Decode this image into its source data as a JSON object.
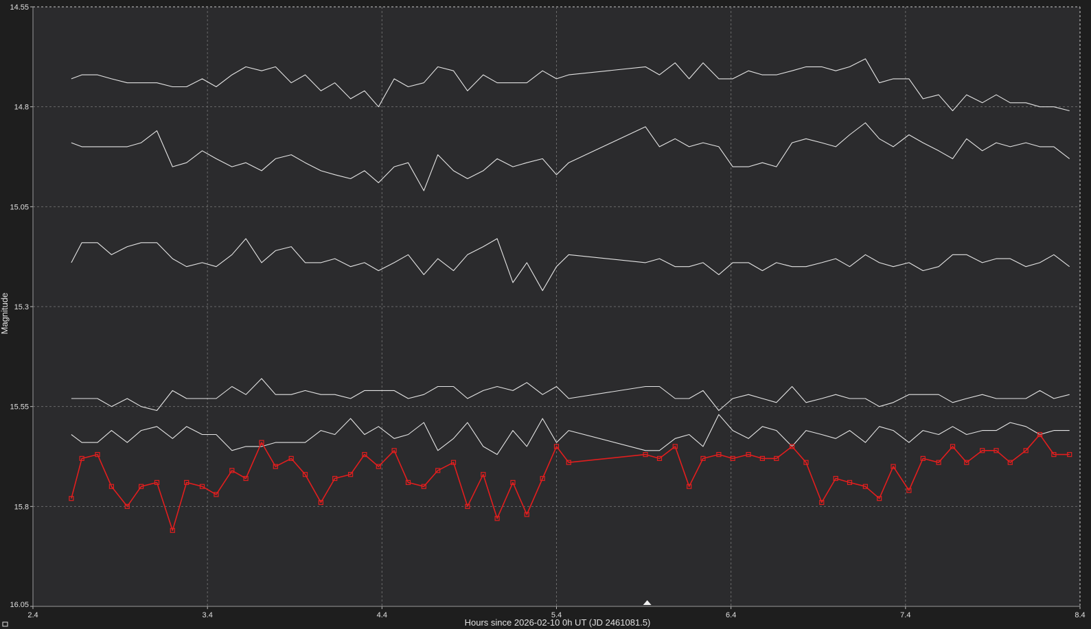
{
  "chart_data": {
    "type": "line",
    "title": "",
    "xlabel": "Hours since 2026-02-10 0h UT (JD 2461081.5)",
    "ylabel": "Magnitude",
    "xlim": [
      2.4,
      8.4
    ],
    "ylim": [
      14.55,
      16.05
    ],
    "y_inverted": true,
    "x_ticks": [
      "2.4",
      "3.4",
      "4.4",
      "5.4",
      "6.4",
      "7.4",
      "8.4"
    ],
    "y_ticks": [
      "14.55",
      "14.8",
      "15.05",
      "15.3",
      "15.55",
      "15.8",
      "16.05"
    ],
    "grid": true,
    "x_marker_value": 5.92,
    "colors": {
      "background": "#2b2b2d",
      "frame": "#1e1e1e",
      "grid": "#6a6a6a",
      "comparison": "#e6e6e6",
      "target": "#e31e1e",
      "text": "#e0e0e0"
    },
    "series": [
      {
        "color": "#e6e6e6",
        "marker": "none",
        "x": [
          2.62,
          2.68,
          2.77,
          2.85,
          2.94,
          3.02,
          3.11,
          3.2,
          3.28,
          3.37,
          3.45,
          3.54,
          3.62,
          3.71,
          3.79,
          3.88,
          3.96,
          4.05,
          4.13,
          4.22,
          4.3,
          4.38,
          4.47,
          4.55,
          4.64,
          4.72,
          4.81,
          4.89,
          4.98,
          5.06,
          5.15,
          5.23,
          5.32,
          5.4,
          5.47,
          5.91,
          5.99,
          6.08,
          6.16,
          6.24,
          6.33,
          6.41,
          6.5,
          6.58,
          6.66,
          6.75,
          6.83,
          6.92,
          7.0,
          7.08,
          7.17,
          7.25,
          7.33,
          7.42,
          7.5,
          7.59,
          7.67,
          7.75,
          7.84,
          7.92,
          8.0,
          8.09,
          8.17,
          8.25,
          8.34
        ],
        "y": [
          14.73,
          14.72,
          14.72,
          14.73,
          14.74,
          14.74,
          14.74,
          14.75,
          14.75,
          14.73,
          14.75,
          14.72,
          14.7,
          14.71,
          14.7,
          14.74,
          14.72,
          14.76,
          14.74,
          14.78,
          14.76,
          14.8,
          14.73,
          14.75,
          14.74,
          14.7,
          14.71,
          14.76,
          14.72,
          14.74,
          14.74,
          14.74,
          14.71,
          14.73,
          14.72,
          14.7,
          14.72,
          14.69,
          14.73,
          14.69,
          14.73,
          14.73,
          14.71,
          14.72,
          14.72,
          14.71,
          14.7,
          14.7,
          14.71,
          14.7,
          14.68,
          14.74,
          14.73,
          14.73,
          14.78,
          14.77,
          14.81,
          14.77,
          14.79,
          14.77,
          14.79,
          14.79,
          14.8,
          14.8,
          14.81
        ]
      },
      {
        "color": "#e6e6e6",
        "marker": "none",
        "x": [
          2.62,
          2.68,
          2.77,
          2.85,
          2.94,
          3.02,
          3.11,
          3.2,
          3.28,
          3.37,
          3.45,
          3.54,
          3.62,
          3.71,
          3.79,
          3.88,
          3.96,
          4.05,
          4.13,
          4.22,
          4.3,
          4.38,
          4.47,
          4.55,
          4.64,
          4.72,
          4.81,
          4.89,
          4.98,
          5.06,
          5.15,
          5.23,
          5.32,
          5.4,
          5.47,
          5.91,
          5.99,
          6.08,
          6.16,
          6.24,
          6.33,
          6.41,
          6.5,
          6.58,
          6.66,
          6.75,
          6.83,
          6.92,
          7.0,
          7.08,
          7.17,
          7.25,
          7.33,
          7.42,
          7.5,
          7.59,
          7.67,
          7.75,
          7.84,
          7.92,
          8.0,
          8.09,
          8.17,
          8.25,
          8.34
        ],
        "y": [
          14.89,
          14.9,
          14.9,
          14.9,
          14.9,
          14.89,
          14.86,
          14.95,
          14.94,
          14.91,
          14.93,
          14.95,
          14.94,
          14.96,
          14.93,
          14.92,
          14.94,
          14.96,
          14.97,
          14.98,
          14.96,
          14.99,
          14.95,
          14.94,
          15.01,
          14.92,
          14.96,
          14.98,
          14.96,
          14.93,
          14.95,
          14.94,
          14.93,
          14.97,
          14.94,
          14.85,
          14.9,
          14.88,
          14.9,
          14.89,
          14.9,
          14.95,
          14.95,
          14.94,
          14.95,
          14.89,
          14.88,
          14.89,
          14.9,
          14.87,
          14.84,
          14.88,
          14.9,
          14.87,
          14.89,
          14.91,
          14.93,
          14.88,
          14.91,
          14.89,
          14.9,
          14.89,
          14.9,
          14.9,
          14.93
        ]
      },
      {
        "color": "#e6e6e6",
        "marker": "none",
        "x": [
          2.62,
          2.68,
          2.77,
          2.85,
          2.94,
          3.02,
          3.11,
          3.2,
          3.28,
          3.37,
          3.45,
          3.54,
          3.62,
          3.71,
          3.79,
          3.88,
          3.96,
          4.05,
          4.13,
          4.22,
          4.3,
          4.38,
          4.47,
          4.55,
          4.64,
          4.72,
          4.81,
          4.89,
          4.98,
          5.06,
          5.15,
          5.23,
          5.32,
          5.4,
          5.47,
          5.91,
          5.99,
          6.08,
          6.16,
          6.24,
          6.33,
          6.41,
          6.5,
          6.58,
          6.66,
          6.75,
          6.83,
          6.92,
          7.0,
          7.08,
          7.17,
          7.25,
          7.33,
          7.42,
          7.5,
          7.59,
          7.67,
          7.75,
          7.84,
          7.92,
          8.0,
          8.09,
          8.17,
          8.25,
          8.34
        ],
        "y": [
          15.19,
          15.14,
          15.14,
          15.17,
          15.15,
          15.14,
          15.14,
          15.18,
          15.2,
          15.19,
          15.2,
          15.17,
          15.13,
          15.19,
          15.16,
          15.15,
          15.19,
          15.19,
          15.18,
          15.2,
          15.19,
          15.21,
          15.19,
          15.17,
          15.22,
          15.18,
          15.21,
          15.17,
          15.15,
          15.13,
          15.24,
          15.19,
          15.26,
          15.2,
          15.17,
          15.19,
          15.18,
          15.2,
          15.2,
          15.19,
          15.22,
          15.19,
          15.19,
          15.21,
          15.19,
          15.2,
          15.2,
          15.19,
          15.18,
          15.2,
          15.17,
          15.19,
          15.2,
          15.19,
          15.21,
          15.2,
          15.17,
          15.17,
          15.19,
          15.18,
          15.18,
          15.2,
          15.19,
          15.17,
          15.2
        ]
      },
      {
        "color": "#e6e6e6",
        "marker": "none",
        "x": [
          2.62,
          2.68,
          2.77,
          2.85,
          2.94,
          3.02,
          3.11,
          3.2,
          3.28,
          3.37,
          3.45,
          3.54,
          3.62,
          3.71,
          3.79,
          3.88,
          3.96,
          4.05,
          4.13,
          4.22,
          4.3,
          4.38,
          4.47,
          4.55,
          4.64,
          4.72,
          4.81,
          4.89,
          4.98,
          5.06,
          5.15,
          5.23,
          5.32,
          5.4,
          5.47,
          5.91,
          5.99,
          6.08,
          6.16,
          6.24,
          6.33,
          6.41,
          6.5,
          6.58,
          6.66,
          6.75,
          6.83,
          6.92,
          7.0,
          7.08,
          7.17,
          7.25,
          7.33,
          7.42,
          7.5,
          7.59,
          7.67,
          7.75,
          7.84,
          7.92,
          8.0,
          8.09,
          8.17,
          8.25,
          8.34
        ],
        "y": [
          15.53,
          15.53,
          15.53,
          15.55,
          15.53,
          15.55,
          15.56,
          15.51,
          15.53,
          15.53,
          15.53,
          15.5,
          15.52,
          15.48,
          15.52,
          15.52,
          15.51,
          15.52,
          15.52,
          15.53,
          15.51,
          15.51,
          15.51,
          15.53,
          15.52,
          15.5,
          15.5,
          15.53,
          15.51,
          15.5,
          15.51,
          15.49,
          15.52,
          15.5,
          15.53,
          15.5,
          15.5,
          15.53,
          15.53,
          15.51,
          15.56,
          15.53,
          15.52,
          15.53,
          15.54,
          15.5,
          15.54,
          15.53,
          15.52,
          15.53,
          15.53,
          15.55,
          15.54,
          15.52,
          15.52,
          15.52,
          15.54,
          15.53,
          15.52,
          15.53,
          15.53,
          15.53,
          15.51,
          15.53,
          15.52
        ]
      },
      {
        "color": "#e6e6e6",
        "marker": "none",
        "x": [
          2.62,
          2.68,
          2.77,
          2.85,
          2.94,
          3.02,
          3.11,
          3.2,
          3.28,
          3.37,
          3.45,
          3.54,
          3.62,
          3.71,
          3.79,
          3.88,
          3.96,
          4.05,
          4.13,
          4.22,
          4.3,
          4.38,
          4.47,
          4.55,
          4.64,
          4.72,
          4.81,
          4.89,
          4.98,
          5.06,
          5.15,
          5.23,
          5.32,
          5.4,
          5.47,
          5.91,
          5.99,
          6.08,
          6.16,
          6.24,
          6.33,
          6.41,
          6.5,
          6.58,
          6.66,
          6.75,
          6.83,
          6.92,
          7.0,
          7.08,
          7.17,
          7.25,
          7.33,
          7.42,
          7.5,
          7.59,
          7.67,
          7.75,
          7.84,
          7.92,
          8.0,
          8.09,
          8.17,
          8.25,
          8.34
        ],
        "y": [
          15.62,
          15.64,
          15.64,
          15.61,
          15.64,
          15.61,
          15.6,
          15.63,
          15.6,
          15.62,
          15.62,
          15.66,
          15.65,
          15.65,
          15.64,
          15.64,
          15.64,
          15.61,
          15.62,
          15.58,
          15.62,
          15.6,
          15.63,
          15.62,
          15.59,
          15.66,
          15.63,
          15.59,
          15.65,
          15.67,
          15.61,
          15.65,
          15.58,
          15.64,
          15.61,
          15.66,
          15.66,
          15.63,
          15.62,
          15.65,
          15.57,
          15.61,
          15.63,
          15.6,
          15.61,
          15.65,
          15.61,
          15.62,
          15.63,
          15.61,
          15.64,
          15.6,
          15.61,
          15.64,
          15.61,
          15.62,
          15.6,
          15.62,
          15.61,
          15.61,
          15.59,
          15.6,
          15.62,
          15.61,
          15.61
        ]
      },
      {
        "color": "#e31e1e",
        "marker": "square",
        "x": [
          2.62,
          2.68,
          2.77,
          2.85,
          2.94,
          3.02,
          3.11,
          3.2,
          3.28,
          3.37,
          3.45,
          3.54,
          3.62,
          3.71,
          3.79,
          3.88,
          3.96,
          4.05,
          4.13,
          4.22,
          4.3,
          4.38,
          4.47,
          4.55,
          4.64,
          4.72,
          4.81,
          4.89,
          4.98,
          5.06,
          5.15,
          5.23,
          5.32,
          5.4,
          5.47,
          5.91,
          5.99,
          6.08,
          6.16,
          6.24,
          6.33,
          6.41,
          6.5,
          6.58,
          6.66,
          6.75,
          6.83,
          6.92,
          7.0,
          7.08,
          7.17,
          7.25,
          7.33,
          7.42,
          7.5,
          7.59,
          7.67,
          7.75,
          7.84,
          7.92,
          8.0,
          8.09,
          8.17,
          8.25,
          8.34
        ],
        "y": [
          15.78,
          15.68,
          15.67,
          15.75,
          15.8,
          15.75,
          15.74,
          15.86,
          15.74,
          15.75,
          15.77,
          15.71,
          15.73,
          15.64,
          15.7,
          15.68,
          15.72,
          15.79,
          15.73,
          15.72,
          15.67,
          15.7,
          15.66,
          15.74,
          15.75,
          15.71,
          15.69,
          15.8,
          15.72,
          15.83,
          15.74,
          15.82,
          15.73,
          15.65,
          15.69,
          15.67,
          15.68,
          15.65,
          15.75,
          15.68,
          15.67,
          15.68,
          15.67,
          15.68,
          15.68,
          15.65,
          15.69,
          15.79,
          15.73,
          15.74,
          15.75,
          15.78,
          15.7,
          15.76,
          15.68,
          15.69,
          15.65,
          15.69,
          15.66,
          15.66,
          15.69,
          15.66,
          15.62,
          15.67,
          15.67
        ]
      }
    ]
  }
}
